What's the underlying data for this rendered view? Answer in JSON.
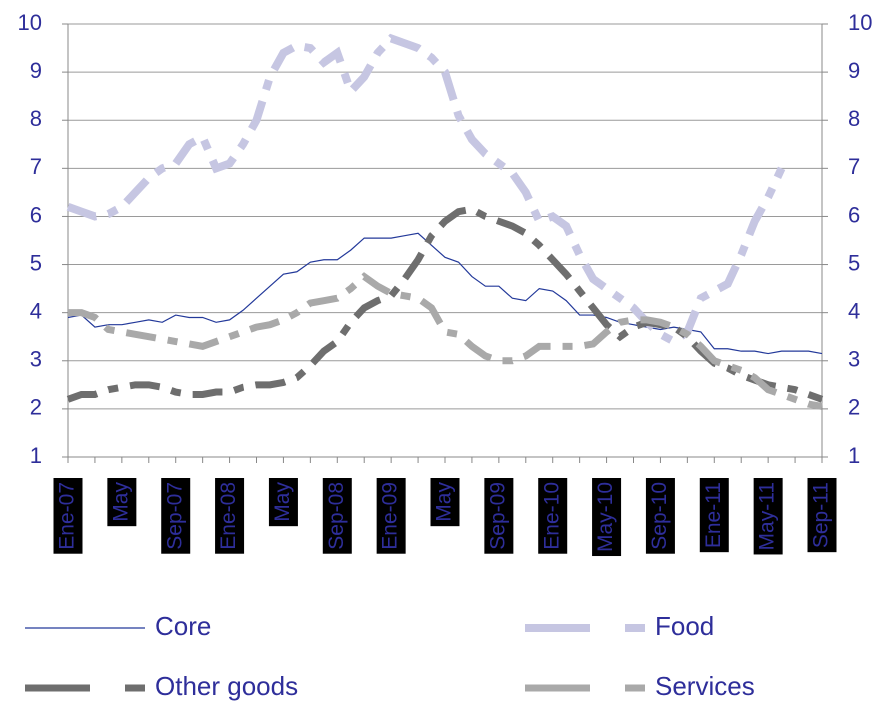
{
  "chart_data": {
    "type": "line",
    "categories": [
      "Ene-07",
      null,
      null,
      null,
      "May",
      null,
      null,
      null,
      "Sep-07",
      null,
      null,
      null,
      "Ene-08",
      null,
      null,
      null,
      "May",
      null,
      null,
      null,
      "Sep-08",
      null,
      null,
      null,
      "Ene-09",
      null,
      null,
      null,
      "May",
      null,
      null,
      null,
      "Sep-09",
      null,
      null,
      null,
      "Ene-10",
      null,
      null,
      null,
      "May-10",
      null,
      null,
      null,
      "Sep-10",
      null,
      null,
      null,
      "Ene-11",
      null,
      null,
      null,
      "May-11",
      null,
      null,
      null,
      "Sep-11"
    ],
    "series": [
      {
        "name": "Core",
        "color": "#23399a",
        "values": [
          3.9,
          3.95,
          3.7,
          3.75,
          3.75,
          3.8,
          3.85,
          3.8,
          3.95,
          3.9,
          3.9,
          3.8,
          3.85,
          4.05,
          4.3,
          4.55,
          4.8,
          4.85,
          5.05,
          5.1,
          5.1,
          5.3,
          5.55,
          5.55,
          5.55,
          5.6,
          5.65,
          5.4,
          5.15,
          5.05,
          4.75,
          4.55,
          4.55,
          4.3,
          4.25,
          4.5,
          4.45,
          4.25,
          3.95,
          3.95,
          3.9,
          3.8,
          3.75,
          3.7,
          3.65,
          3.7,
          3.65,
          3.6,
          3.25,
          3.25,
          3.2,
          3.2,
          3.15,
          3.2,
          3.2,
          3.2,
          3.15
        ]
      },
      {
        "name": "Food",
        "color": "#c6c6e2",
        "values": [
          6.2,
          6.1,
          6.0,
          6.05,
          6.2,
          6.5,
          6.8,
          7.0,
          7.1,
          7.5,
          7.65,
          7.0,
          7.1,
          7.5,
          8.0,
          8.9,
          9.4,
          9.55,
          9.5,
          9.2,
          9.4,
          8.6,
          8.9,
          9.4,
          9.7,
          9.6,
          9.5,
          9.3,
          9.0,
          8.1,
          7.6,
          7.3,
          7.1,
          6.9,
          6.5,
          5.9,
          6.0,
          5.8,
          5.2,
          4.7,
          4.5,
          4.3,
          4.1,
          3.8,
          3.55,
          3.4,
          3.6,
          4.3,
          4.45,
          4.6,
          5.2,
          5.9,
          6.4,
          7.0,
          null,
          null,
          null
        ]
      },
      {
        "name": "Other goods",
        "color": "#6e6e6e",
        "values": [
          2.2,
          2.3,
          2.3,
          2.4,
          2.45,
          2.5,
          2.5,
          2.45,
          2.35,
          2.3,
          2.3,
          2.35,
          2.35,
          2.45,
          2.5,
          2.5,
          2.55,
          2.65,
          2.9,
          3.2,
          3.4,
          3.8,
          4.1,
          4.25,
          4.35,
          4.7,
          5.1,
          5.6,
          5.9,
          6.1,
          6.15,
          6.0,
          5.9,
          5.8,
          5.65,
          5.4,
          5.1,
          4.8,
          4.45,
          4.1,
          3.75,
          3.5,
          3.7,
          3.8,
          3.75,
          3.7,
          3.5,
          3.2,
          2.95,
          2.85,
          2.7,
          2.6,
          2.5,
          2.45,
          2.4,
          2.3,
          2.2
        ]
      },
      {
        "name": "Services",
        "color": "#a9a9a9",
        "values": [
          4.0,
          4.0,
          3.9,
          3.65,
          3.6,
          3.55,
          3.5,
          3.45,
          3.4,
          3.35,
          3.3,
          3.4,
          3.5,
          3.6,
          3.7,
          3.75,
          3.85,
          4.0,
          4.2,
          4.25,
          4.3,
          4.5,
          4.75,
          4.55,
          4.4,
          4.35,
          4.3,
          4.1,
          3.6,
          3.55,
          3.3,
          3.1,
          3.0,
          3.0,
          3.1,
          3.3,
          3.3,
          3.3,
          3.3,
          3.35,
          3.6,
          3.8,
          3.85,
          3.85,
          3.8,
          3.7,
          3.55,
          3.3,
          3.0,
          2.9,
          2.8,
          2.65,
          2.4,
          2.3,
          2.2,
          2.1,
          2.05
        ]
      }
    ],
    "ylim": [
      1,
      10
    ],
    "yticks": [
      1,
      2,
      3,
      4,
      5,
      6,
      7,
      8,
      9,
      10
    ],
    "y2lim": [
      1,
      10
    ],
    "y2ticks": [
      1,
      2,
      3,
      4,
      5,
      6,
      7,
      8,
      9,
      10
    ],
    "grid": true
  }
}
